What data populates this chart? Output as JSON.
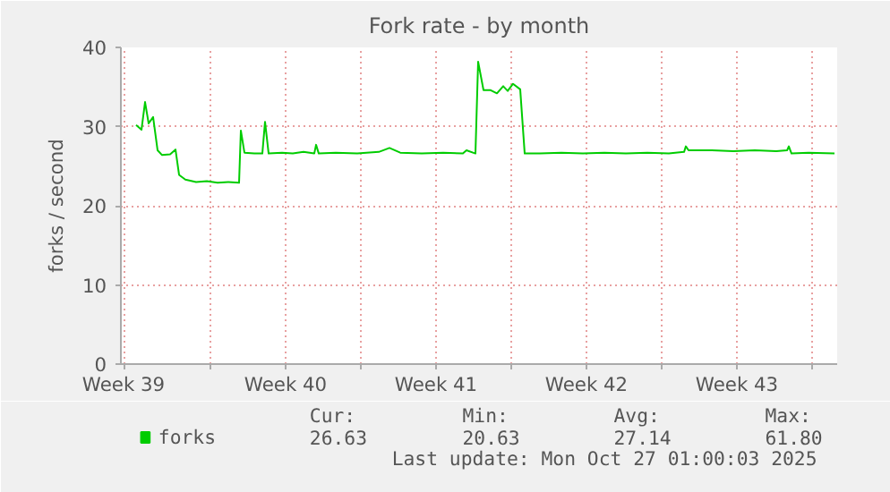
{
  "chart_data": {
    "type": "line",
    "title": "Fork rate - by month",
    "ylabel": "forks / second",
    "x": [
      "2025-09-24T13:00",
      "2025-09-24T19:00",
      "2025-09-24T23:00",
      "2025-09-25T03:00",
      "2025-09-25T08:00",
      "2025-09-25T13:00",
      "2025-09-25T18:00",
      "2025-09-26T03:00",
      "2025-09-26T09:00",
      "2025-09-26T13:00",
      "2025-09-26T20:00",
      "2025-09-27T08:00",
      "2025-09-27T20:00",
      "2025-09-28T08:00",
      "2025-09-28T20:00",
      "2025-09-29T08:00",
      "2025-09-29T10:00",
      "2025-09-29T14:00",
      "2025-09-30T01:00",
      "2025-09-30T10:00",
      "2025-09-30T13:00",
      "2025-09-30T17:00",
      "2025-10-01T08:00",
      "2025-10-01T20:00",
      "2025-10-02T08:00",
      "2025-10-02T20:00",
      "2025-10-02T22:00",
      "2025-10-03T01:00",
      "2025-10-03T20:00",
      "2025-10-04T20:00",
      "2025-10-05T20:00",
      "2025-10-06T08:00",
      "2025-10-06T20:00",
      "2025-10-07T20:00",
      "2025-10-08T20:00",
      "2025-10-09T18:00",
      "2025-10-09T22:00",
      "2025-10-10T08:00",
      "2025-10-10T11:00",
      "2025-10-10T17:00",
      "2025-10-11T01:00",
      "2025-10-11T08:00",
      "2025-10-11T15:00",
      "2025-10-11T20:00",
      "2025-10-12T02:00",
      "2025-10-12T10:00",
      "2025-10-12T15:00",
      "2025-10-13T08:00",
      "2025-10-14T08:00",
      "2025-10-15T08:00",
      "2025-10-16T08:00",
      "2025-10-17T08:00",
      "2025-10-18T08:00",
      "2025-10-19T08:00",
      "2025-10-20T01:00",
      "2025-10-20T03:00",
      "2025-10-20T06:00",
      "2025-10-21T08:00",
      "2025-10-22T08:00",
      "2025-10-23T08:00",
      "2025-10-24T08:00",
      "2025-10-24T20:00",
      "2025-10-24T22:00",
      "2025-10-25T01:00",
      "2025-10-25T20:00",
      "2025-10-27T01:00"
    ],
    "series": [
      {
        "name": "forks",
        "color": "#00cc00",
        "values": [
          30.2,
          29.6,
          33.1,
          30.4,
          31.2,
          27.0,
          26.4,
          26.5,
          27.1,
          23.9,
          23.3,
          23.0,
          23.1,
          22.9,
          23.0,
          22.9,
          29.5,
          26.7,
          26.6,
          26.6,
          30.6,
          26.6,
          26.7,
          26.6,
          26.8,
          26.6,
          27.7,
          26.6,
          26.7,
          26.6,
          26.8,
          27.3,
          26.7,
          26.6,
          26.7,
          26.6,
          27.0,
          26.6,
          38.2,
          34.6,
          34.6,
          34.2,
          35.1,
          34.5,
          35.4,
          34.7,
          26.6,
          26.6,
          26.7,
          26.6,
          26.7,
          26.6,
          26.7,
          26.6,
          26.8,
          27.5,
          27.0,
          27.0,
          26.9,
          27.0,
          26.9,
          27.0,
          27.5,
          26.6,
          26.7,
          26.6
        ]
      }
    ],
    "xlim": [
      "2025-09-23T20:00",
      "2025-10-27T04:00"
    ],
    "ylim": [
      0,
      40
    ],
    "xticks": [
      {
        "value": "2025-09-23T23:00",
        "label": "Week 39"
      },
      {
        "value": "2025-09-28",
        "label": null
      },
      {
        "value": "2025-10-01T12:00",
        "label": "Week 40"
      },
      {
        "value": "2025-10-05",
        "label": null
      },
      {
        "value": "2025-10-08T12:00",
        "label": "Week 41"
      },
      {
        "value": "2025-10-12",
        "label": null
      },
      {
        "value": "2025-10-15T12:00",
        "label": "Week 42"
      },
      {
        "value": "2025-10-19",
        "label": null
      },
      {
        "value": "2025-10-22T12:00",
        "label": "Week 43"
      },
      {
        "value": "2025-10-26",
        "label": null
      }
    ],
    "yticks": [
      0,
      10,
      20,
      30,
      40
    ],
    "grid": true,
    "legend": "bottom",
    "marker": "none",
    "line_style": "solid",
    "annotations": [
      "Cur:",
      "Min:",
      "Avg:",
      "Max:",
      "26.63",
      "20.63",
      "27.14",
      "61.80",
      "Last update: Mon Oct 27 01:00:03 2025"
    ]
  }
}
